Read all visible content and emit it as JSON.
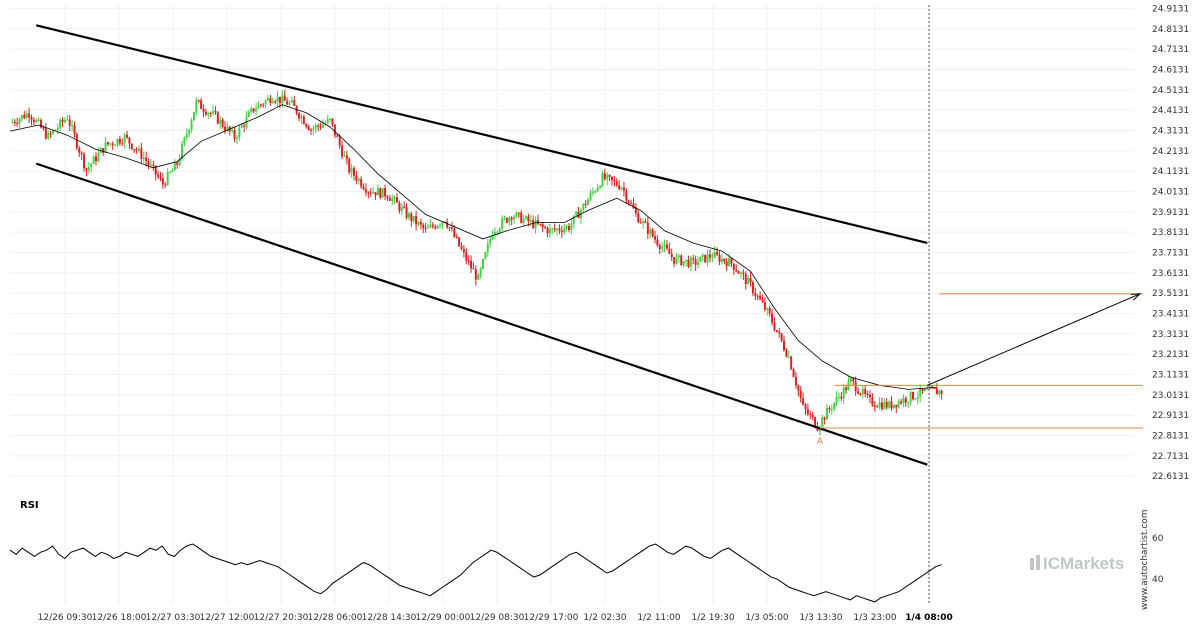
{
  "chart_data": {
    "type": "candlestick",
    "y_axis_ticks": [
      "24.9131",
      "24.8131",
      "24.7131",
      "24.6131",
      "24.5131",
      "24.4131",
      "24.3131",
      "24.2131",
      "24.1131",
      "24.0131",
      "23.9131",
      "23.8131",
      "23.7131",
      "23.6131",
      "23.5131",
      "23.4131",
      "23.3131",
      "23.2131",
      "23.1131",
      "23.0131",
      "22.9131",
      "22.8131",
      "22.7131",
      "22.6131"
    ],
    "ylim": [
      22.57,
      24.93
    ],
    "x_axis_ticks": [
      "12/26 09:30",
      "12/26 18:00",
      "12/27 03:30",
      "12/27 12:00",
      "12/27 20:30",
      "12/28 06:00",
      "12/28 14:30",
      "12/29 00:00",
      "12/29 08:30",
      "12/29 17:00",
      "1/2 02:30",
      "1/2 11:00",
      "1/2 19:30",
      "1/3 05:00",
      "1/3 13:30",
      "1/3 23:00",
      "1/4 08:00"
    ],
    "current_time_label": "1/4 08:00",
    "price_path": [
      [
        0,
        24.35
      ],
      [
        8,
        24.4
      ],
      [
        16,
        24.28
      ],
      [
        24,
        24.38
      ],
      [
        32,
        24.12
      ],
      [
        40,
        24.24
      ],
      [
        48,
        24.28
      ],
      [
        56,
        24.18
      ],
      [
        64,
        24.05
      ],
      [
        70,
        24.15
      ],
      [
        78,
        24.45
      ],
      [
        86,
        24.38
      ],
      [
        94,
        24.28
      ],
      [
        102,
        24.42
      ],
      [
        110,
        24.48
      ],
      [
        118,
        24.44
      ],
      [
        126,
        24.32
      ],
      [
        134,
        24.36
      ],
      [
        142,
        24.12
      ],
      [
        150,
        24.02
      ],
      [
        158,
        24.0
      ],
      [
        166,
        23.9
      ],
      [
        174,
        23.82
      ],
      [
        182,
        23.88
      ],
      [
        190,
        23.7
      ],
      [
        196,
        23.58
      ],
      [
        202,
        23.82
      ],
      [
        210,
        23.9
      ],
      [
        218,
        23.86
      ],
      [
        226,
        23.82
      ],
      [
        234,
        23.84
      ],
      [
        240,
        23.94
      ],
      [
        248,
        24.08
      ],
      [
        256,
        24.04
      ],
      [
        262,
        23.9
      ],
      [
        270,
        23.78
      ],
      [
        278,
        23.68
      ],
      [
        286,
        23.66
      ],
      [
        294,
        23.7
      ],
      [
        302,
        23.66
      ],
      [
        310,
        23.55
      ],
      [
        318,
        23.4
      ],
      [
        326,
        23.2
      ],
      [
        332,
        22.95
      ],
      [
        338,
        22.86
      ],
      [
        344,
        22.96
      ],
      [
        352,
        23.08
      ],
      [
        360,
        22.98
      ],
      [
        368,
        22.96
      ],
      [
        376,
        23.0
      ],
      [
        384,
        23.03
      ],
      [
        390,
        23.03
      ]
    ],
    "moving_average": [
      [
        0,
        24.31
      ],
      [
        12,
        24.34
      ],
      [
        24,
        24.29
      ],
      [
        36,
        24.22
      ],
      [
        48,
        24.18
      ],
      [
        60,
        24.13
      ],
      [
        70,
        24.16
      ],
      [
        80,
        24.26
      ],
      [
        92,
        24.32
      ],
      [
        104,
        24.38
      ],
      [
        114,
        24.44
      ],
      [
        124,
        24.4
      ],
      [
        134,
        24.33
      ],
      [
        144,
        24.22
      ],
      [
        154,
        24.1
      ],
      [
        164,
        24.0
      ],
      [
        174,
        23.9
      ],
      [
        186,
        23.84
      ],
      [
        198,
        23.78
      ],
      [
        208,
        23.82
      ],
      [
        220,
        23.86
      ],
      [
        232,
        23.86
      ],
      [
        242,
        23.92
      ],
      [
        254,
        23.98
      ],
      [
        264,
        23.92
      ],
      [
        274,
        23.82
      ],
      [
        286,
        23.76
      ],
      [
        298,
        23.72
      ],
      [
        310,
        23.62
      ],
      [
        320,
        23.44
      ],
      [
        330,
        23.28
      ],
      [
        340,
        23.18
      ],
      [
        352,
        23.1
      ],
      [
        364,
        23.06
      ],
      [
        376,
        23.04
      ],
      [
        388,
        23.05
      ]
    ],
    "channel_upper": [
      [
        11,
        24.83
      ],
      [
        384,
        23.76
      ]
    ],
    "channel_lower": [
      [
        11,
        24.15
      ],
      [
        384,
        22.67
      ]
    ],
    "levels": {
      "upper": 23.06,
      "lower": 22.85,
      "target": 23.51
    },
    "forecast_arrow": [
      [
        384,
        23.06
      ],
      [
        468,
        23.51
      ]
    ],
    "pattern_point": {
      "x": 339,
      "y": 22.83,
      "label": "A"
    },
    "rsi": {
      "title": "RSI",
      "ticks": [
        "60",
        "40"
      ],
      "ylim": [
        28,
        71
      ],
      "values": [
        54,
        52,
        55,
        53,
        51,
        53,
        54,
        56,
        52,
        50,
        53,
        54,
        55,
        53,
        51,
        53,
        52,
        50,
        51,
        53,
        52,
        51,
        53,
        55,
        54,
        56,
        52,
        51,
        54,
        56,
        57,
        55,
        53,
        51,
        50,
        49,
        48,
        47,
        48,
        47,
        48,
        49,
        48,
        47,
        46,
        44,
        42,
        40,
        38,
        36,
        34,
        33,
        35,
        38,
        40,
        42,
        44,
        46,
        48,
        47,
        45,
        43,
        41,
        39,
        37,
        36,
        35,
        34,
        33,
        32,
        34,
        36,
        38,
        40,
        42,
        45,
        48,
        50,
        52,
        54,
        53,
        51,
        49,
        47,
        45,
        43,
        41,
        42,
        44,
        46,
        48,
        50,
        52,
        53,
        51,
        49,
        47,
        45,
        43,
        44,
        46,
        48,
        50,
        52,
        54,
        56,
        57,
        55,
        53,
        52,
        54,
        56,
        55,
        53,
        51,
        50,
        52,
        54,
        55,
        53,
        51,
        49,
        47,
        45,
        43,
        41,
        40,
        38,
        36,
        35,
        34,
        33,
        32,
        33,
        34,
        33,
        32,
        31,
        30,
        32,
        31,
        30,
        29,
        31,
        32,
        33,
        34,
        36,
        38,
        40,
        42,
        44,
        46,
        47
      ],
      "x_range": [
        0,
        390
      ]
    },
    "colors": {
      "up": "#43d343",
      "down": "#e02020",
      "line": "#000000",
      "level": "#e8863a",
      "ma": "#000000",
      "rsi": "#000000",
      "grid": "#f0f0f0"
    }
  },
  "watermark": "www.autochartist.com",
  "logo": {
    "name": "ICMarkets",
    "color": "#b9c3bd"
  }
}
